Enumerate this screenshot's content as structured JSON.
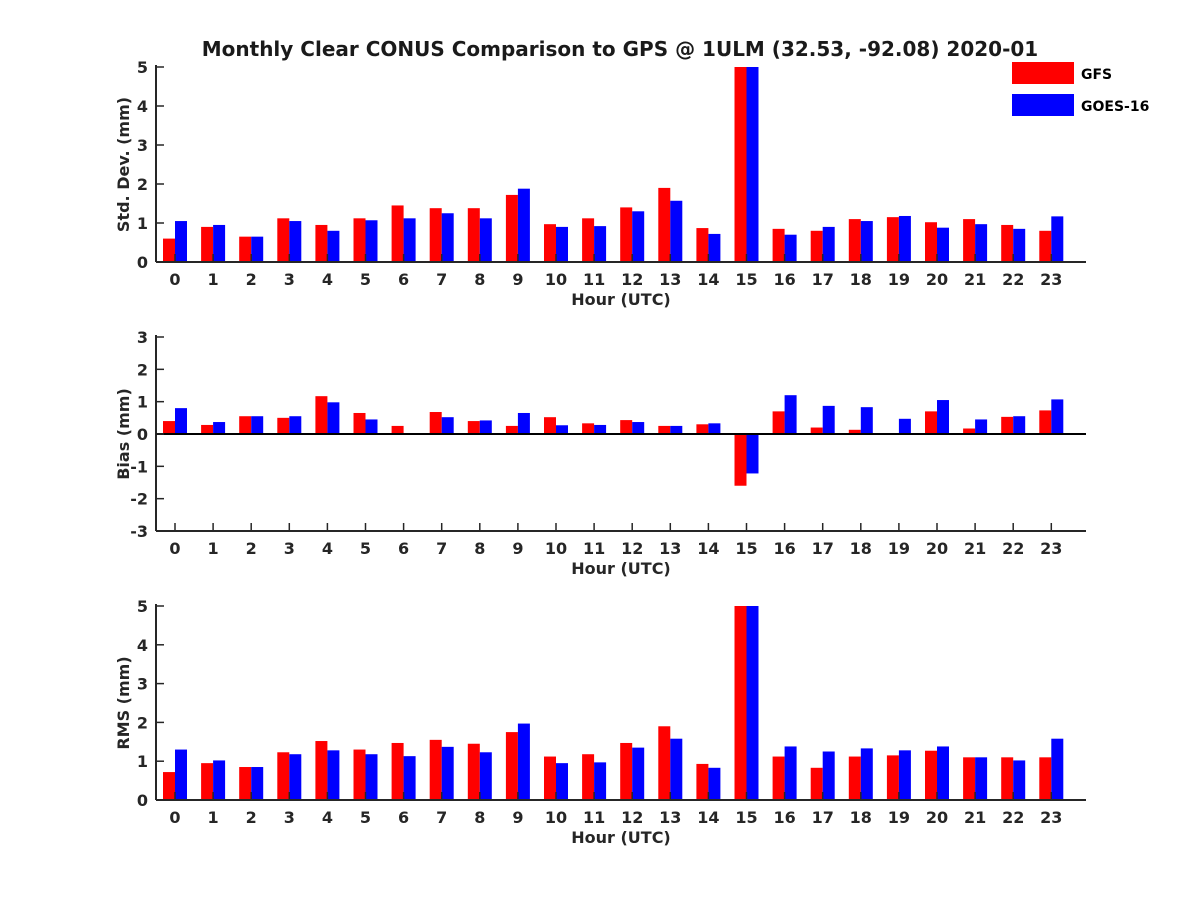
{
  "title": "Monthly Clear CONUS Comparison to GPS @ 1ULM (32.53, -92.08) 2020-01",
  "legend": {
    "placement": "top-right",
    "entries": [
      {
        "label": "GFS",
        "color": "#ff0000"
      },
      {
        "label": "GOES-16",
        "color": "#0000ff"
      }
    ]
  },
  "chart_data": [
    {
      "type": "bar",
      "xlabel": "Hour (UTC)",
      "ylabel": "Std. Dev. (mm)",
      "ylim": [
        0,
        5
      ],
      "yticks": [
        0,
        1,
        2,
        3,
        4,
        5
      ],
      "categories": [
        "0",
        "1",
        "2",
        "3",
        "4",
        "5",
        "6",
        "7",
        "8",
        "9",
        "10",
        "11",
        "12",
        "13",
        "14",
        "15",
        "16",
        "17",
        "18",
        "19",
        "20",
        "21",
        "22",
        "23"
      ],
      "series": [
        {
          "name": "GFS",
          "color": "#ff0000",
          "values": [
            0.6,
            0.9,
            0.65,
            1.12,
            0.95,
            1.12,
            1.45,
            1.38,
            1.38,
            1.72,
            0.97,
            1.12,
            1.4,
            1.9,
            0.87,
            5.0,
            0.85,
            0.8,
            1.1,
            1.15,
            1.02,
            1.1,
            0.95,
            0.8
          ]
        },
        {
          "name": "GOES-16",
          "color": "#0000ff",
          "values": [
            1.05,
            0.95,
            0.65,
            1.05,
            0.8,
            1.07,
            1.12,
            1.25,
            1.12,
            1.88,
            0.9,
            0.92,
            1.3,
            1.57,
            0.72,
            5.0,
            0.7,
            0.9,
            1.05,
            1.18,
            0.88,
            0.97,
            0.85,
            1.17
          ]
        }
      ]
    },
    {
      "type": "bar",
      "xlabel": "Hour (UTC)",
      "ylabel": "Bias (mm)",
      "ylim": [
        -3,
        3
      ],
      "yticks": [
        -3,
        -2,
        -1,
        0,
        1,
        2,
        3
      ],
      "categories": [
        "0",
        "1",
        "2",
        "3",
        "4",
        "5",
        "6",
        "7",
        "8",
        "9",
        "10",
        "11",
        "12",
        "13",
        "14",
        "15",
        "16",
        "17",
        "18",
        "19",
        "20",
        "21",
        "22",
        "23"
      ],
      "series": [
        {
          "name": "GFS",
          "color": "#ff0000",
          "values": [
            0.4,
            0.28,
            0.55,
            0.5,
            1.17,
            0.65,
            0.25,
            0.68,
            0.4,
            0.25,
            0.52,
            0.33,
            0.43,
            0.25,
            0.3,
            -1.6,
            0.7,
            0.2,
            0.13,
            -0.03,
            0.7,
            0.17,
            0.53,
            0.73
          ]
        },
        {
          "name": "GOES-16",
          "color": "#0000ff",
          "values": [
            0.8,
            0.37,
            0.55,
            0.55,
            0.98,
            0.45,
            0.03,
            0.52,
            0.42,
            0.65,
            0.27,
            0.28,
            0.37,
            0.25,
            0.33,
            -1.22,
            1.2,
            0.87,
            0.83,
            0.47,
            1.05,
            0.45,
            0.55,
            1.07
          ]
        }
      ]
    },
    {
      "type": "bar",
      "xlabel": "Hour (UTC)",
      "ylabel": "RMS (mm)",
      "ylim": [
        0,
        5
      ],
      "yticks": [
        0,
        1,
        2,
        3,
        4,
        5
      ],
      "categories": [
        "0",
        "1",
        "2",
        "3",
        "4",
        "5",
        "6",
        "7",
        "8",
        "9",
        "10",
        "11",
        "12",
        "13",
        "14",
        "15",
        "16",
        "17",
        "18",
        "19",
        "20",
        "21",
        "22",
        "23"
      ],
      "series": [
        {
          "name": "GFS",
          "color": "#ff0000",
          "values": [
            0.72,
            0.95,
            0.85,
            1.23,
            1.52,
            1.3,
            1.47,
            1.55,
            1.45,
            1.75,
            1.12,
            1.18,
            1.47,
            1.9,
            0.93,
            5.0,
            1.12,
            0.83,
            1.12,
            1.15,
            1.27,
            1.1,
            1.1,
            1.1
          ]
        },
        {
          "name": "GOES-16",
          "color": "#0000ff",
          "values": [
            1.3,
            1.02,
            0.85,
            1.18,
            1.28,
            1.18,
            1.13,
            1.37,
            1.23,
            1.97,
            0.95,
            0.97,
            1.35,
            1.58,
            0.83,
            5.0,
            1.38,
            1.25,
            1.33,
            1.28,
            1.38,
            1.1,
            1.02,
            1.58
          ]
        }
      ]
    }
  ]
}
